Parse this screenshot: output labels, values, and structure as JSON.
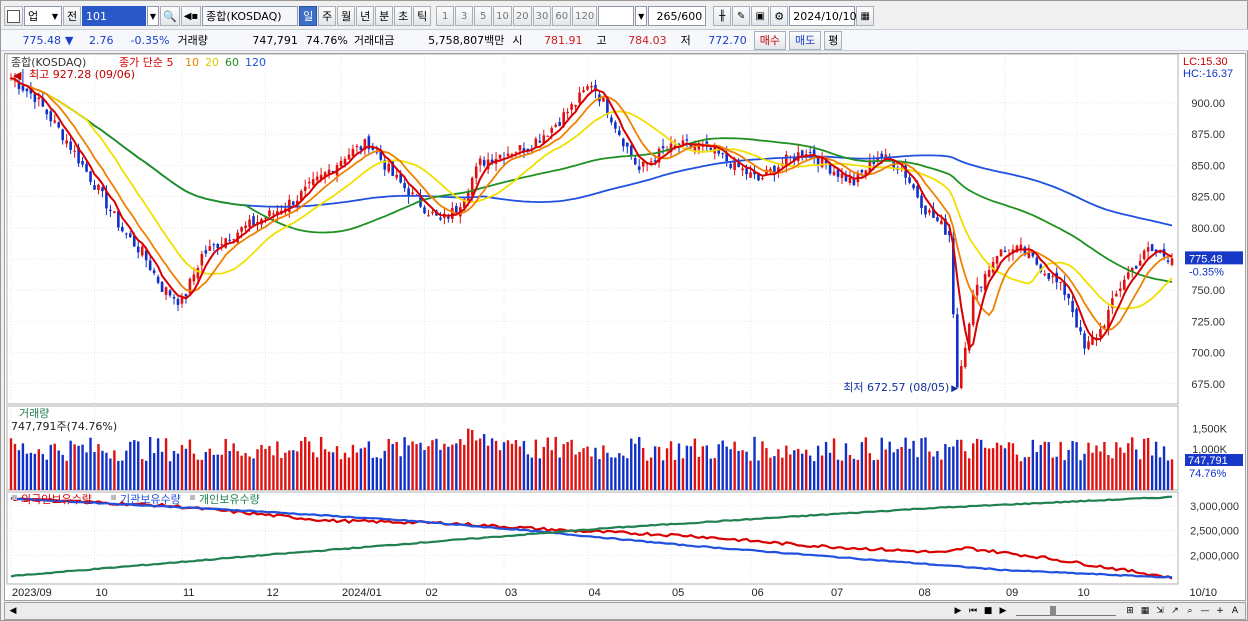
{
  "toolbar": {
    "market": "업",
    "prev_label": "전",
    "code": "101",
    "name": "종합(KOSDAQ)",
    "periods": [
      "일",
      "주",
      "월",
      "년",
      "분",
      "초",
      "틱"
    ],
    "active_period": "일",
    "minute_options": [
      "1",
      "3",
      "5",
      "10",
      "20",
      "30",
      "60",
      "120"
    ],
    "count": "265",
    "count_max": "/600",
    "date": "2024/10/10"
  },
  "quote": {
    "price": "775.48",
    "change_arrow": "▼",
    "change": "2.76",
    "change_pct": "-0.35%",
    "volume_label": "거래량",
    "volume": "747,791",
    "volume_pct": "74.76%",
    "amount_label": "거래대금",
    "amount": "5,758,807백만",
    "open_label": "시",
    "open": "781.91",
    "high_label": "고",
    "high": "784.03",
    "low_label": "저",
    "low": "772.70",
    "buy_label": "매수",
    "sell_label": "매도",
    "eval_label": "평"
  },
  "chart_data": {
    "type": "line",
    "title": "종합(KOSDAQ)",
    "legend": [
      "종가 단순 5",
      "10",
      "20",
      "60",
      "120"
    ],
    "high_label": "최고 927.28 (09/06)",
    "low_label": "최저 672.57 (08/05)",
    "lc": "LC:15.30",
    "hc": "HC:-16.37",
    "price_axis": [
      "900.00",
      "875.00",
      "850.00",
      "825.00",
      "800.00",
      "775.00",
      "750.00",
      "725.00",
      "700.00",
      "675.00"
    ],
    "price_ylim": [
      662,
      936
    ],
    "current_price_tag": "775.48",
    "current_change_tag": "-0.35%",
    "x_months": [
      "2023/09",
      "10",
      "11",
      "12",
      "2024/01",
      "02",
      "03",
      "04",
      "05",
      "06",
      "07",
      "08",
      "09",
      "10"
    ],
    "x_axis_right": "10/10",
    "close_anchors": [
      [
        0,
        920
      ],
      [
        6,
        905
      ],
      [
        14,
        870
      ],
      [
        22,
        830
      ],
      [
        28,
        798
      ],
      [
        33,
        780
      ],
      [
        38,
        752
      ],
      [
        43,
        740
      ],
      [
        48,
        778
      ],
      [
        54,
        792
      ],
      [
        60,
        802
      ],
      [
        66,
        812
      ],
      [
        72,
        824
      ],
      [
        78,
        840
      ],
      [
        84,
        858
      ],
      [
        90,
        868
      ],
      [
        96,
        842
      ],
      [
        102,
        822
      ],
      [
        108,
        805
      ],
      [
        112,
        815
      ],
      [
        118,
        852
      ],
      [
        124,
        860
      ],
      [
        130,
        865
      ],
      [
        136,
        880
      ],
      [
        142,
        900
      ],
      [
        146,
        916
      ],
      [
        150,
        895
      ],
      [
        154,
        870
      ],
      [
        158,
        846
      ],
      [
        164,
        862
      ],
      [
        170,
        866
      ],
      [
        176,
        862
      ],
      [
        182,
        850
      ],
      [
        188,
        838
      ],
      [
        194,
        852
      ],
      [
        200,
        862
      ],
      [
        206,
        848
      ],
      [
        212,
        836
      ],
      [
        218,
        858
      ],
      [
        224,
        848
      ],
      [
        230,
        815
      ],
      [
        236,
        795
      ],
      [
        238,
        672
      ],
      [
        242,
        745
      ],
      [
        248,
        780
      ],
      [
        254,
        782
      ],
      [
        260,
        766
      ],
      [
        266,
        745
      ],
      [
        270,
        702
      ],
      [
        274,
        718
      ],
      [
        280,
        760
      ],
      [
        286,
        782
      ],
      [
        290,
        778
      ],
      [
        292,
        775.48
      ]
    ],
    "ma_colors": {
      "ma5": "#d80000",
      "ma10": "#f08000",
      "ma20": "#f0e000",
      "ma60": "#209020",
      "ma120": "#2050e0"
    },
    "volume_panel": {
      "title": "거래량",
      "value_label": "747,791주(74.76%)",
      "axis": [
        "1,500K",
        "1,000K"
      ],
      "current_tag": "747,791",
      "pct_tag": "74.76%",
      "ylim": [
        0,
        1900
      ]
    },
    "holdings_panel": {
      "series_names": [
        "외국인보유수량",
        "기관보유수량",
        "개인보유수량"
      ],
      "axis": [
        "3,000,000",
        "2,500,000",
        "2,000,000"
      ],
      "ylim": [
        1500000,
        3200000
      ],
      "series": [
        {
          "name": "외국인보유수량",
          "color": "#d80000",
          "anchors": [
            [
              0,
              3150000
            ],
            [
              40,
              3000000
            ],
            [
              80,
              2700000
            ],
            [
              110,
              2650000
            ],
            [
              140,
              2500000
            ],
            [
              170,
              2400000
            ],
            [
              200,
              2200000
            ],
            [
              235,
              2050000
            ],
            [
              240,
              2150000
            ],
            [
              260,
              1950000
            ],
            [
              292,
              1550000
            ]
          ]
        },
        {
          "name": "기관보유수량",
          "color": "#2050e0",
          "anchors": [
            [
              0,
              3150000
            ],
            [
              60,
              2900000
            ],
            [
              100,
              2700000
            ],
            [
              130,
              2500000
            ],
            [
              170,
              2200000
            ],
            [
              210,
              1950000
            ],
            [
              250,
              1700000
            ],
            [
              292,
              1550000
            ]
          ]
        },
        {
          "name": "개인보유수량",
          "color": "#208050",
          "anchors": [
            [
              0,
              1580000
            ],
            [
              60,
              1980000
            ],
            [
              110,
              2300000
            ],
            [
              150,
              2550000
            ],
            [
              190,
              2750000
            ],
            [
              230,
              2950000
            ],
            [
              292,
              3180000
            ]
          ]
        }
      ]
    }
  }
}
